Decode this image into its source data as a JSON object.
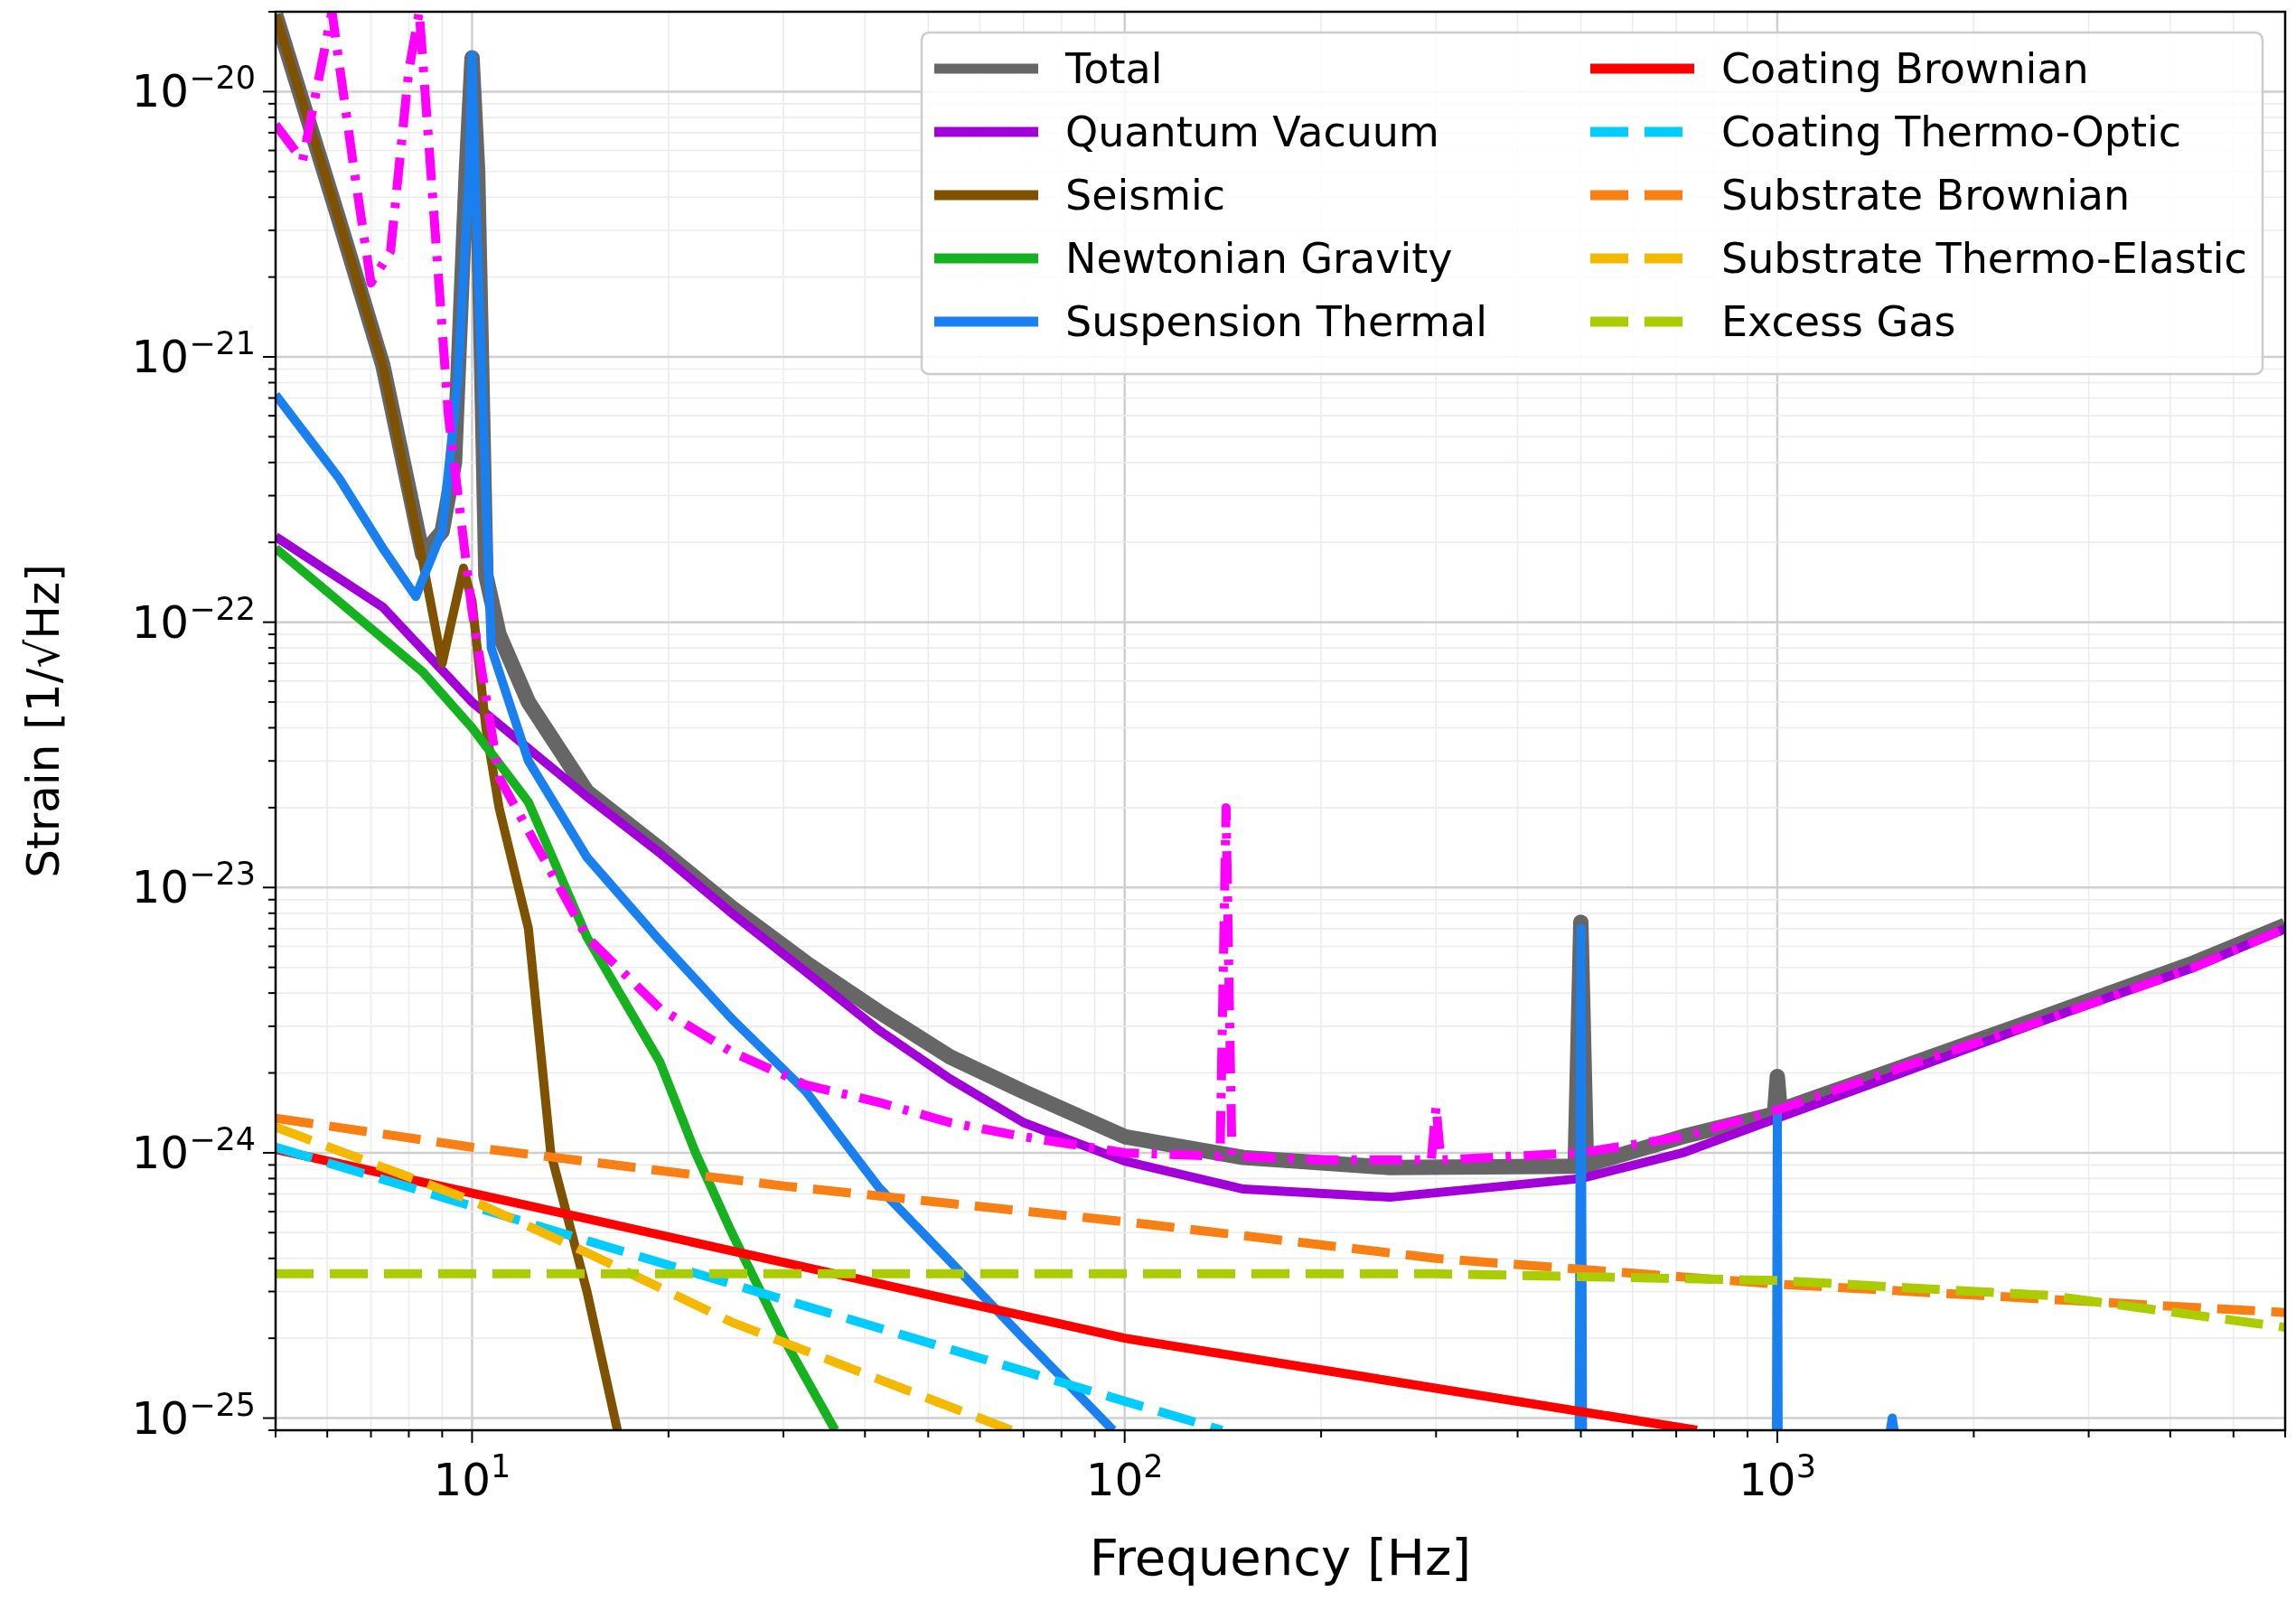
{
  "chart_data": {
    "type": "line",
    "xlabel": "Frequency [Hz]",
    "ylabel": "Strain [1/√Hz]",
    "log": "xy",
    "grid": true,
    "legend": "top right",
    "xlim": [
      5,
      6000
    ],
    "ylim": [
      9e-26,
      2e-20
    ],
    "xticks": [
      {
        "value": 5,
        "label": null
      },
      {
        "value": 6,
        "label": null
      },
      {
        "value": 7,
        "label": null
      },
      {
        "value": 8,
        "label": null
      },
      {
        "value": 9,
        "label": null
      },
      {
        "value": 10,
        "label": "10$^{1}$"
      },
      {
        "value": 20,
        "label": null
      },
      {
        "value": 30,
        "label": null
      },
      {
        "value": 40,
        "label": null
      },
      {
        "value": 50,
        "label": null
      },
      {
        "value": 60,
        "label": null
      },
      {
        "value": 70,
        "label": null
      },
      {
        "value": 80,
        "label": null
      },
      {
        "value": 90,
        "label": null
      },
      {
        "value": 100,
        "label": "10$^{2}$"
      },
      {
        "value": 200,
        "label": null
      },
      {
        "value": 300,
        "label": null
      },
      {
        "value": 400,
        "label": null
      },
      {
        "value": 500,
        "label": null
      },
      {
        "value": 600,
        "label": null
      },
      {
        "value": 700,
        "label": null
      },
      {
        "value": 800,
        "label": null
      },
      {
        "value": 900,
        "label": null
      },
      {
        "value": 1000,
        "label": "10$^{3}$"
      },
      {
        "value": 2000,
        "label": null
      },
      {
        "value": 3000,
        "label": null
      },
      {
        "value": 4000,
        "label": null
      },
      {
        "value": 5000,
        "label": null
      },
      {
        "value": 6000,
        "label": null
      }
    ],
    "yticks": [
      {
        "value": 9e-26,
        "label": null
      },
      {
        "value": 1e-25,
        "label": "10$^{−25}$"
      },
      {
        "value": 2e-25,
        "label": null
      },
      {
        "value": 3e-25,
        "label": null
      },
      {
        "value": 4e-25,
        "label": null
      },
      {
        "value": 5e-25,
        "label": null
      },
      {
        "value": 6e-25,
        "label": null
      },
      {
        "value": 7e-25,
        "label": null
      },
      {
        "value": 8e-25,
        "label": null
      },
      {
        "value": 9e-25,
        "label": null
      },
      {
        "value": 1e-24,
        "label": "10$^{−24}$"
      },
      {
        "value": 2e-24,
        "label": null
      },
      {
        "value": 3e-24,
        "label": null
      },
      {
        "value": 4e-24,
        "label": null
      },
      {
        "value": 5e-24,
        "label": null
      },
      {
        "value": 6e-24,
        "label": null
      },
      {
        "value": 7e-24,
        "label": null
      },
      {
        "value": 8e-24,
        "label": null
      },
      {
        "value": 9e-24,
        "label": null
      },
      {
        "value": 1e-23,
        "label": "10$^{−23}$"
      },
      {
        "value": 2e-23,
        "label": null
      },
      {
        "value": 3e-23,
        "label": null
      },
      {
        "value": 4e-23,
        "label": null
      },
      {
        "value": 5e-23,
        "label": null
      },
      {
        "value": 6e-23,
        "label": null
      },
      {
        "value": 7e-23,
        "label": null
      },
      {
        "value": 8e-23,
        "label": null
      },
      {
        "value": 9e-23,
        "label": null
      },
      {
        "value": 1e-22,
        "label": "10$^{−22}$"
      },
      {
        "value": 2e-22,
        "label": null
      },
      {
        "value": 3e-22,
        "label": null
      },
      {
        "value": 4e-22,
        "label": null
      },
      {
        "value": 5e-22,
        "label": null
      },
      {
        "value": 6e-22,
        "label": null
      },
      {
        "value": 7e-22,
        "label": null
      },
      {
        "value": 8e-22,
        "label": null
      },
      {
        "value": 9e-22,
        "label": null
      },
      {
        "value": 1e-21,
        "label": "10$^{−21}$"
      },
      {
        "value": 2e-21,
        "label": null
      },
      {
        "value": 3e-21,
        "label": null
      },
      {
        "value": 4e-21,
        "label": null
      },
      {
        "value": 5e-21,
        "label": null
      },
      {
        "value": 6e-21,
        "label": null
      },
      {
        "value": 7e-21,
        "label": null
      },
      {
        "value": 8e-21,
        "label": null
      },
      {
        "value": 9e-21,
        "label": null
      },
      {
        "value": 1e-20,
        "label": "10$^{−20}$"
      },
      {
        "value": 2e-20,
        "label": null
      }
    ],
    "series": [
      {
        "name": "Total",
        "color": "#666666",
        "line_style": "solid",
        "x": [
          5,
          6.25,
          7.3,
          8.4,
          9.0,
          9.4,
          9.8,
          10,
          10.2,
          10.5,
          11,
          12.2,
          15,
          19.4,
          25,
          32.5,
          42,
          54,
          70,
          100,
          152,
          255,
          490,
          500,
          510,
          716,
          990,
          1000,
          1010,
          1550,
          2600,
          4350,
          6000
        ],
        "values": [
          1.95e-20,
          3.3e-21,
          9.3e-22,
          1.8e-22,
          2.2e-22,
          4e-22,
          5e-21,
          1.34e-20,
          5e-21,
          1.5e-22,
          9e-23,
          5e-23,
          2.3e-23,
          1.4e-23,
          8.4e-24,
          5.2e-24,
          3.4e-24,
          2.3e-24,
          1.7e-24,
          1.15e-24,
          9.6e-25,
          8.8e-25,
          8.9e-25,
          7.4e-24,
          9e-25,
          1.15e-24,
          1.4e-24,
          1.94e-24,
          1.45e-24,
          2.1e-24,
          3.3e-24,
          5.2e-24,
          7.2e-24
        ]
      },
      {
        "name": "Quantum Vacuum",
        "color": "#a100d8",
        "line_style": "solid",
        "x": [
          5,
          7.3,
          10,
          15,
          19.4,
          25,
          32.5,
          42,
          54,
          70,
          100,
          152,
          255,
          500,
          716,
          1000,
          1550,
          2600,
          4350,
          6000
        ],
        "values": [
          2.1e-22,
          1.14e-22,
          5e-23,
          2.2e-23,
          1.35e-23,
          8e-24,
          4.8e-24,
          2.9e-24,
          1.9e-24,
          1.3e-24,
          9.3e-25,
          7.3e-25,
          6.8e-25,
          8e-25,
          1e-24,
          1.35e-24,
          2e-24,
          3.2e-24,
          5e-24,
          7e-24
        ]
      },
      {
        "name": "Seismic",
        "color": "#7f5200",
        "line_style": "solid",
        "x": [
          5,
          6.25,
          7.3,
          8.4,
          9.0,
          9.7,
          10,
          10.5,
          11,
          12.2,
          13.2,
          15,
          16.7
        ],
        "values": [
          1.95e-20,
          3.3e-21,
          9.3e-22,
          1.7e-22,
          7e-23,
          1.6e-22,
          1.2e-22,
          4e-23,
          2e-23,
          7e-24,
          1e-24,
          3e-25,
          9e-26
        ]
      },
      {
        "name": "Newtonian Gravity",
        "color": "#16b11e",
        "line_style": "solid",
        "x": [
          5,
          8.4,
          10,
          12.2,
          15,
          19.4,
          22,
          25,
          30,
          36
        ],
        "values": [
          1.9e-22,
          6.5e-23,
          4e-23,
          2.1e-23,
          6.5e-24,
          2.2e-24,
          1e-24,
          5e-25,
          2e-25,
          9e-26
        ]
      },
      {
        "name": "Suspension Thermal",
        "color": "#1a80f0",
        "line_style": "solid",
        "x": [
          5,
          6.25,
          7.3,
          8.2,
          9,
          9.5,
          9.9,
          10,
          10.1,
          10.5,
          10.7,
          12.2,
          15,
          19.4,
          25,
          32.5,
          42,
          54,
          70,
          96,
          300,
          497,
          500,
          503,
          700,
          997,
          1000,
          1003,
          1200,
          1490,
          1500,
          1510
        ],
        "values": [
          7.2e-22,
          3.5e-22,
          1.9e-22,
          1.25e-22,
          2.2e-22,
          8e-22,
          5e-21,
          1.37e-20,
          5e-21,
          3e-22,
          8e-23,
          3e-23,
          1.3e-23,
          6.3e-24,
          3.2e-24,
          1.7e-24,
          7.4e-25,
          3.9e-25,
          2e-25,
          9e-26,
          null,
          9e-26,
          7e-24,
          9e-26,
          null,
          9e-26,
          1.4e-24,
          9e-26,
          null,
          9e-26,
          1e-25,
          9e-26
        ]
      },
      {
        "name": "Coating Brownian",
        "color": "#ff0000",
        "line_style": "solid",
        "x": [
          5,
          100,
          753
        ],
        "values": [
          1.03e-24,
          2e-25,
          9e-26
        ]
      },
      {
        "name": "Coating Thermo-Optic",
        "color": "#00ccff",
        "line_style": "dashed",
        "x": [
          5,
          25,
          141
        ],
        "values": [
          1.05e-24,
          3.2e-25,
          9e-26
        ]
      },
      {
        "name": "Substrate Brownian",
        "color": "#f77f14",
        "line_style": "dashed",
        "x": [
          5,
          10,
          30,
          100,
          300,
          1000,
          6000
        ],
        "values": [
          1.35e-24,
          1.05e-24,
          7.5e-25,
          5.5e-25,
          4e-25,
          3.2e-25,
          2.5e-25
        ]
      },
      {
        "name": "Substrate Thermo-Elastic",
        "color": "#f5b800",
        "line_style": "dashed",
        "x": [
          5,
          10,
          15,
          25,
          42,
          67
        ],
        "values": [
          1.25e-24,
          6.6e-25,
          4.2e-25,
          2.3e-25,
          1.4e-25,
          9e-26
        ]
      },
      {
        "name": "Excess Gas",
        "color": "#aacc00",
        "line_style": "dashed",
        "x": [
          5,
          300,
          1000,
          2600,
          6000
        ],
        "values": [
          3.5e-25,
          3.5e-25,
          3.3e-25,
          2.9e-25,
          2.2e-25
        ]
      },
      {
        "color": "#ff00ff",
        "line_style": "dashdot",
        "x": [
          5,
          5.5,
          6.1,
          6.6,
          7.0,
          7.5,
          8.0,
          8.3,
          8.6,
          9.2,
          10,
          11,
          15,
          19.4,
          25,
          32.5,
          42,
          54,
          70,
          100,
          140,
          143,
          146,
          200,
          295,
          300,
          305,
          500,
          716,
          1000,
          1550,
          2600,
          4350,
          6000
        ],
        "values": [
          7.5e-21,
          5.5e-21,
          2e-20,
          5e-21,
          1.9e-21,
          2.5e-21,
          1.2e-20,
          2e-20,
          6e-21,
          6e-22,
          1.1e-22,
          2.6e-23,
          6.5e-24,
          3.5e-24,
          2.4e-24,
          1.8e-24,
          1.55e-24,
          1.3e-24,
          1.15e-24,
          1e-24,
          9.7e-25,
          2e-23,
          9.7e-25,
          9.4e-25,
          9.4e-25,
          1.5e-24,
          9.4e-25,
          1e-24,
          1.15e-24,
          1.45e-24,
          2.1e-24,
          3.2e-24,
          5e-24,
          7e-24
        ]
      }
    ]
  }
}
